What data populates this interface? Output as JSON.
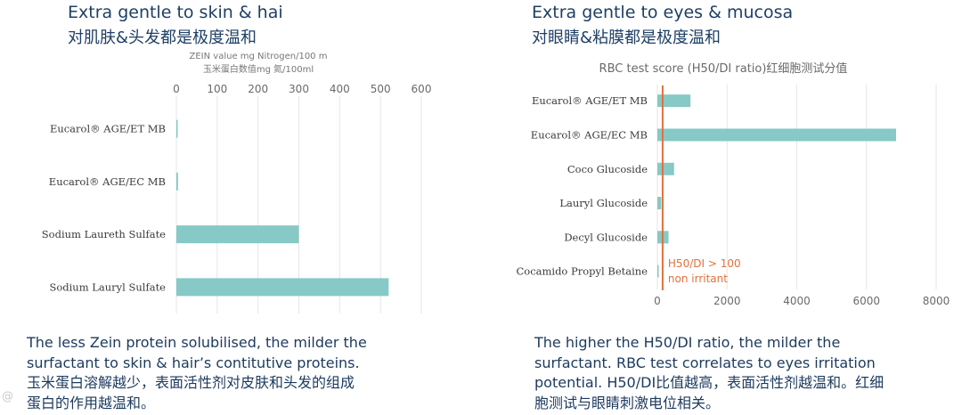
{
  "left": {
    "title_en": "Extra gentle to skin & hai",
    "title_cn": "对肌肤&头发都是极度温和",
    "caption": [
      "The less Zein protein solubilised, the milder the",
      "surfactant to skin & hair’s contitutive proteins.",
      "玉米蛋白溶解越少，表面活性剂对皮肤和头发的组成",
      "蛋白的作用越温和。"
    ]
  },
  "right": {
    "title_en": "Extra gentle to eyes & mucosa",
    "title_cn": "对眼睛&粘膜都是极度温和",
    "caption": [
      "The higher the H50/DI ratio, the milder the",
      "surfactant. RBC test correlates to eyes irritation",
      "potential. H50/DI比值越高，表面活性剂越温和。红细",
      "胞测试与眼睛刺激电位相关。"
    ]
  },
  "watermark": "@",
  "chart_data": [
    {
      "type": "bar",
      "orientation": "horizontal",
      "title": "",
      "xlabel": "ZEIN value mg Nitrogen/100 m",
      "xlabel_cn": "玉米蛋白数值mg 氮/100ml",
      "ylabel": "",
      "categories": [
        "Eucarol® AGE/ET MB",
        "Eucarol® AGE/EC MB",
        "Sodium Laureth Sulfate",
        "Sodium Lauryl Sulfate"
      ],
      "values": [
        3,
        4,
        300,
        520
      ],
      "xlim": [
        0,
        600
      ],
      "xticks": [
        0,
        100,
        200,
        300,
        400,
        500,
        600
      ],
      "axis_position": "top",
      "grid": true,
      "color": "#86c9c6"
    },
    {
      "type": "bar",
      "orientation": "horizontal",
      "title": "RBC test score (H50/DI ratio)红细胞测试分值",
      "xlabel": "",
      "ylabel": "",
      "categories": [
        "Eucarol® AGE/ET MB",
        "Eucarol® AGE/EC MB",
        "Coco Glucoside",
        "Lauryl Glucoside",
        "Decyl Glucoside",
        "Cocamido Propyl Betaine"
      ],
      "values": [
        950,
        6850,
        480,
        110,
        320,
        20
      ],
      "xlim": [
        0,
        8000
      ],
      "xticks": [
        0,
        2000,
        4000,
        6000,
        8000
      ],
      "axis_position": "bottom",
      "grid": true,
      "color": "#86c9c6",
      "reference_line": {
        "value": 100,
        "label_line1": "H50/DI > 100",
        "label_line2": "non irritant",
        "color": "#e2703a"
      }
    }
  ]
}
